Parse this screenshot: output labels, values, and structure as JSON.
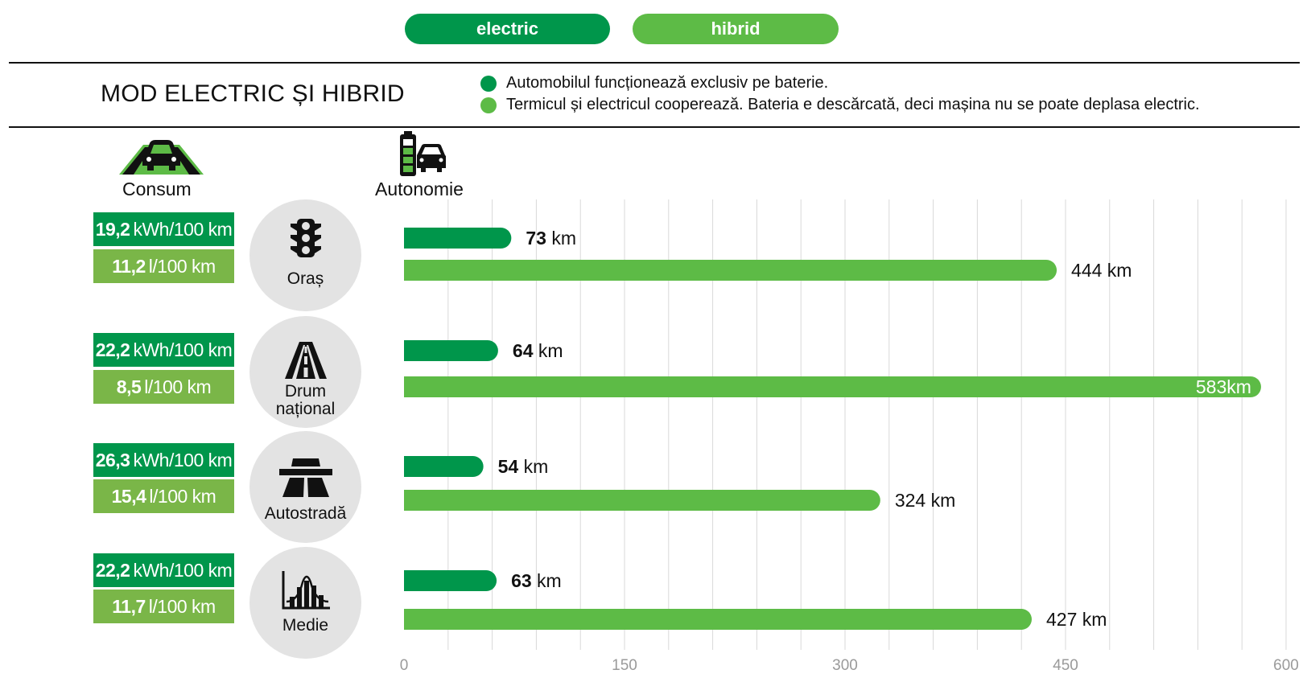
{
  "colors": {
    "electric": "#00964b",
    "hybrid": "#5dbb46",
    "consum_kwh_bg": "#00964b",
    "consum_l_bg": "#7ab648",
    "circle_bg": "#e3e3e3",
    "grid": "#d9d9d9"
  },
  "header": {
    "electric_pill": "electric",
    "hybrid_pill": "hibrid",
    "title": "MOD ELECTRIC ȘI HIBRID",
    "legend": [
      {
        "text": "Automobilul funcționează exclusiv pe baterie.",
        "color": "#00964b"
      },
      {
        "text": "Termicul și electricul cooperează. Bateria e descărcată, deci mașina nu se poate deplasa electric.",
        "color": "#5dbb46"
      }
    ]
  },
  "columns": {
    "consum_label": "Consum",
    "autonomie_label": "Autonomie",
    "consum_icon": "car-on-road-icon",
    "autonomie_icon": "battery-car-icon"
  },
  "categories": [
    {
      "label_lines": [
        "Oraș"
      ],
      "icon": "traffic-light-icon",
      "kwh_value": "19,2",
      "kwh_unit": "kWh/100 km",
      "fuel_value": "11,2",
      "fuel_unit": "l/100 km"
    },
    {
      "label_lines": [
        "Drum",
        "național"
      ],
      "icon": "road-icon",
      "kwh_value": "22,2",
      "kwh_unit": "kWh/100 km",
      "fuel_value": "8,5",
      "fuel_unit": "l/100 km"
    },
    {
      "label_lines": [
        "Autostradă"
      ],
      "icon": "highway-icon",
      "kwh_value": "26,3",
      "kwh_unit": "kWh/100 km",
      "fuel_value": "15,4",
      "fuel_unit": "l/100 km"
    },
    {
      "label_lines": [
        "Medie"
      ],
      "icon": "average-chart-icon",
      "kwh_value": "22,2",
      "kwh_unit": "kWh/100 km",
      "fuel_value": "11,7",
      "fuel_unit": "l/100 km"
    }
  ],
  "chart_data": {
    "type": "bar",
    "orientation": "horizontal",
    "categories": [
      "Oraș",
      "Drum național",
      "Autostradă",
      "Medie"
    ],
    "series": [
      {
        "name": "electric",
        "values": [
          73,
          64,
          54,
          63
        ],
        "labels": [
          "73 km",
          "64 km",
          "54 km",
          "63 km"
        ]
      },
      {
        "name": "hibrid",
        "values": [
          444,
          583,
          324,
          427
        ],
        "labels": [
          "444 km",
          "583km",
          "324 km",
          "427 km"
        ]
      }
    ],
    "xlim": [
      0,
      600
    ],
    "xticks": [
      0,
      150,
      300,
      450,
      600
    ],
    "grid": true
  }
}
